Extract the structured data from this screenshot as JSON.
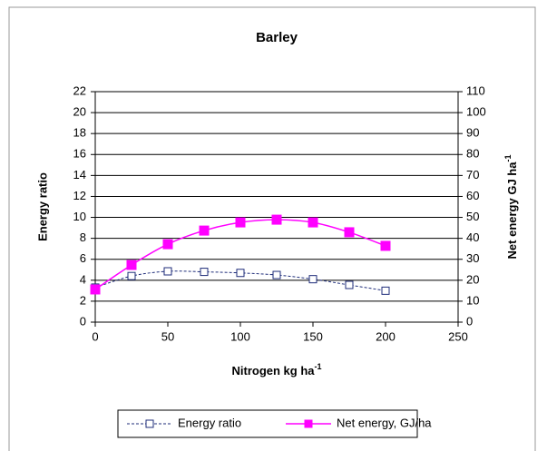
{
  "chart_data": {
    "type": "line",
    "title": "Barley",
    "x_label": "Nitrogen kg ha",
    "x_label_sup": "-1",
    "y_label": "Energy ratio",
    "y2_label": "Net energy GJ ha",
    "y2_label_sup": "-1",
    "x": [
      0,
      25,
      50,
      75,
      100,
      125,
      150,
      175,
      200
    ],
    "series": [
      {
        "name": "Energy ratio",
        "color": "#1f2d7a",
        "values": [
          3.3,
          4.4,
          4.85,
          4.8,
          4.7,
          4.5,
          4.1,
          3.55,
          3.0
        ]
      },
      {
        "name": "Net energy, GJ/ha",
        "color": "#ff00ff",
        "axis": "y2",
        "values": [
          15.6,
          27.3,
          37.2,
          43.7,
          47.6,
          48.9,
          47.6,
          42.9,
          36.4
        ]
      }
    ],
    "xlim": [
      0,
      250
    ],
    "xticks": [
      0,
      50,
      100,
      150,
      200,
      250
    ],
    "ylim": [
      0,
      22
    ],
    "yticks": [
      0,
      2,
      4,
      6,
      8,
      10,
      12,
      14,
      16,
      18,
      20,
      22
    ],
    "y2lim": [
      0,
      110
    ],
    "y2ticks": [
      0,
      10,
      20,
      30,
      40,
      50,
      60,
      70,
      80,
      90,
      100,
      110
    ],
    "grid": true,
    "legend": "bottom"
  }
}
